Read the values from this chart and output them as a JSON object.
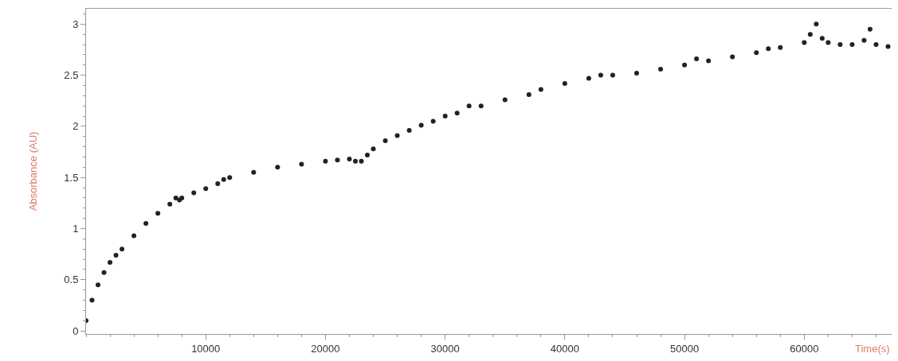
{
  "chart_data": {
    "type": "scatter",
    "xlabel": "Time(s)",
    "ylabel": "Absorbance (AU)",
    "xlim": [
      0,
      67300
    ],
    "ylim": [
      -0.03,
      3.15
    ],
    "xticks": [
      10000,
      20000,
      30000,
      40000,
      50000,
      60000
    ],
    "yticks": [
      0,
      0.5,
      1,
      1.5,
      2,
      2.5,
      3
    ],
    "legend": false,
    "marker": "circle",
    "series": [
      {
        "color": "#222222",
        "x": [
          0,
          500,
          1000,
          1500,
          2000,
          2500,
          3000,
          4000,
          5000,
          6000,
          7000,
          7500,
          7800,
          8000,
          9000,
          10000,
          11000,
          11500,
          12000,
          14000,
          16000,
          18000,
          20000,
          21000,
          22000,
          22500,
          23000,
          23500,
          24000,
          25000,
          26000,
          27000,
          28000,
          29000,
          30000,
          31000,
          32000,
          33000,
          35000,
          37000,
          38000,
          40000,
          42000,
          43000,
          44000,
          46000,
          48000,
          50000,
          51000,
          52000,
          54000,
          56000,
          57000,
          58000,
          60000,
          60500,
          61000,
          61500,
          62000,
          63000,
          64000,
          65000,
          65500,
          66000,
          67000
        ],
        "values": [
          0.1,
          0.3,
          0.45,
          0.57,
          0.67,
          0.74,
          0.8,
          0.93,
          1.05,
          1.15,
          1.24,
          1.3,
          1.28,
          1.3,
          1.35,
          1.39,
          1.44,
          1.48,
          1.5,
          1.55,
          1.6,
          1.63,
          1.66,
          1.67,
          1.68,
          1.66,
          1.66,
          1.72,
          1.78,
          1.86,
          1.91,
          1.96,
          2.01,
          2.05,
          2.1,
          2.13,
          2.2,
          2.2,
          2.26,
          2.31,
          2.36,
          2.42,
          2.47,
          2.5,
          2.5,
          2.52,
          2.56,
          2.6,
          2.66,
          2.64,
          2.68,
          2.72,
          2.76,
          2.77,
          2.82,
          2.9,
          3.0,
          2.86,
          2.82,
          2.8,
          2.8,
          2.84,
          2.95,
          2.8,
          2.78
        ]
      }
    ]
  }
}
